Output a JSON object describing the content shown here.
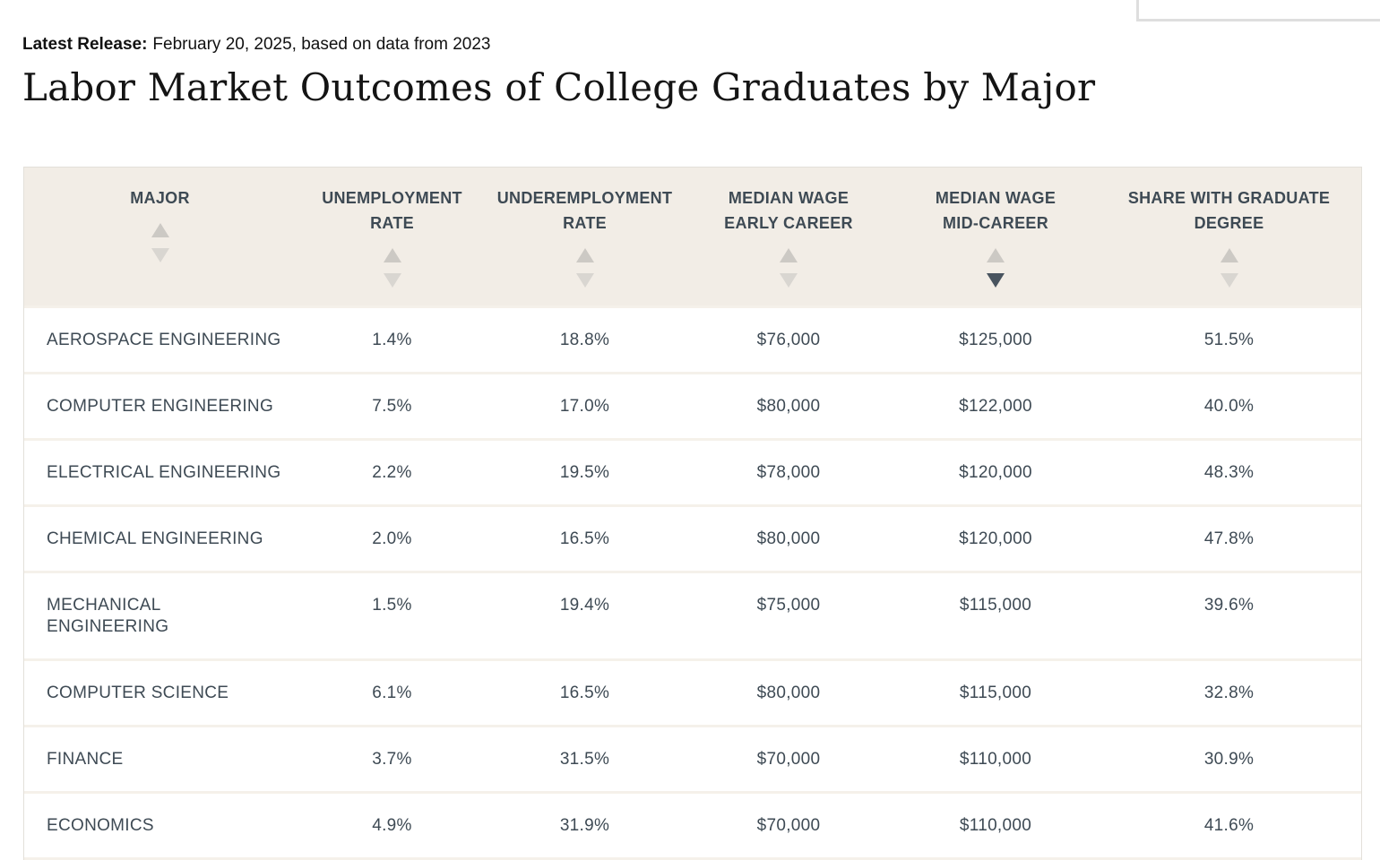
{
  "header": {
    "latest_release_label": "Latest Release:",
    "latest_release_text": "February 20, 2025, based on data from 2023",
    "title": "Labor Market Outcomes of College Graduates by Major"
  },
  "table": {
    "columns": [
      {
        "id": "major",
        "label": "MAJOR",
        "sort": "none"
      },
      {
        "id": "unemployment-rate",
        "label": "UNEMPLOYMENT\nRATE",
        "sort": "none"
      },
      {
        "id": "underemployment-rate",
        "label": "UNDEREMPLOYMENT\nRATE",
        "sort": "none"
      },
      {
        "id": "median-wage-early-career",
        "label": "MEDIAN WAGE\nEARLY CAREER",
        "sort": "none"
      },
      {
        "id": "median-wage-mid-career",
        "label": "MEDIAN WAGE\nMID-CAREER",
        "sort": "desc"
      },
      {
        "id": "share-with-graduate-degree",
        "label": "SHARE WITH GRADUATE\nDEGREE",
        "sort": "none"
      }
    ],
    "rows": [
      {
        "major": "AEROSPACE ENGINEERING",
        "unemployment_rate": "1.4%",
        "underemployment_rate": "18.8%",
        "median_wage_early_career": "$76,000",
        "median_wage_mid_career": "$125,000",
        "share_with_graduate_degree": "51.5%"
      },
      {
        "major": "COMPUTER ENGINEERING",
        "unemployment_rate": "7.5%",
        "underemployment_rate": "17.0%",
        "median_wage_early_career": "$80,000",
        "median_wage_mid_career": "$122,000",
        "share_with_graduate_degree": "40.0%"
      },
      {
        "major": "ELECTRICAL ENGINEERING",
        "unemployment_rate": "2.2%",
        "underemployment_rate": "19.5%",
        "median_wage_early_career": "$78,000",
        "median_wage_mid_career": "$120,000",
        "share_with_graduate_degree": "48.3%"
      },
      {
        "major": "CHEMICAL ENGINEERING",
        "unemployment_rate": "2.0%",
        "underemployment_rate": "16.5%",
        "median_wage_early_career": "$80,000",
        "median_wage_mid_career": "$120,000",
        "share_with_graduate_degree": "47.8%"
      },
      {
        "major": "MECHANICAL\nENGINEERING",
        "unemployment_rate": "1.5%",
        "underemployment_rate": "19.4%",
        "median_wage_early_career": "$75,000",
        "median_wage_mid_career": "$115,000",
        "share_with_graduate_degree": "39.6%"
      },
      {
        "major": "COMPUTER SCIENCE",
        "unemployment_rate": "6.1%",
        "underemployment_rate": "16.5%",
        "median_wage_early_career": "$80,000",
        "median_wage_mid_career": "$115,000",
        "share_with_graduate_degree": "32.8%"
      },
      {
        "major": "FINANCE",
        "unemployment_rate": "3.7%",
        "underemployment_rate": "31.5%",
        "median_wage_early_career": "$70,000",
        "median_wage_mid_career": "$110,000",
        "share_with_graduate_degree": "30.9%"
      },
      {
        "major": "ECONOMICS",
        "unemployment_rate": "4.9%",
        "underemployment_rate": "31.9%",
        "median_wage_early_career": "$70,000",
        "median_wage_mid_career": "$110,000",
        "share_with_graduate_degree": "41.6%"
      }
    ]
  },
  "colors": {
    "header_bg": "#f2ede6",
    "separator": "#f5f1ea",
    "table_border": "#e3e0da",
    "text": "#3e4a54",
    "arrow_up": "#ccc9c4",
    "arrow_down": "#d9d6d1",
    "arrow_active": "#49545f"
  }
}
